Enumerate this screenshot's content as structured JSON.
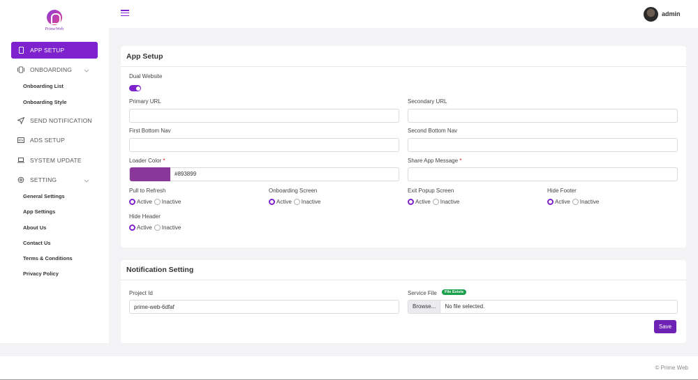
{
  "brand": {
    "logo_text": "PrimeWeb"
  },
  "topbar": {
    "user_name": "admin"
  },
  "sidebar": {
    "items": [
      {
        "label": "APP SETUP",
        "icon": "phone-icon"
      },
      {
        "label": "ONBOARDING",
        "icon": "onboarding-icon"
      },
      {
        "label": "SEND NOTIFICATION",
        "icon": "send-icon"
      },
      {
        "label": "ADS SETUP",
        "icon": "ads-icon"
      },
      {
        "label": "SYSTEM UPDATE",
        "icon": "laptop-icon"
      },
      {
        "label": "SETTING",
        "icon": "gear-icon"
      }
    ],
    "onboarding_sub": [
      "Onboarding List",
      "Onboarding Style"
    ],
    "setting_sub": [
      "General Settings",
      "App Settings",
      "About Us",
      "Contact Us",
      "Terms & Conditions",
      "Privacy Policy"
    ]
  },
  "app_setup": {
    "title": "App Setup",
    "dual_website_label": "Dual Website",
    "primary_url_label": "Primary URL",
    "primary_url_value": "",
    "secondary_url_label": "Secondary URL",
    "secondary_url_value": "",
    "first_bottom_nav_label": "First Bottom Nav",
    "first_bottom_nav_value": "",
    "second_bottom_nav_label": "Second Bottom Nav",
    "second_bottom_nav_value": "",
    "loader_color_label": "Loader Color",
    "loader_color_value": "#893899",
    "share_message_label": "Share App Message",
    "share_message_value": "",
    "required_mark": "*",
    "active_label": "Active",
    "inactive_label": "Inactive",
    "pull_to_refresh_label": "Pull to Refresh",
    "onboarding_screen_label": "Onboarding Screen",
    "exit_popup_label": "Exit Popup Screen",
    "hide_footer_label": "Hide Footer",
    "hide_header_label": "Hide Header"
  },
  "notification": {
    "title": "Notification Setting",
    "project_id_label": "Project Id",
    "project_id_value": "prime-web-6dfaf",
    "service_file_label": "Service File",
    "file_exists_badge": "File Exists",
    "browse_label": "Browse...",
    "no_file_label": "No file selected.",
    "save_label": "Save"
  },
  "footer": {
    "copyright": "© Prime Web"
  },
  "colors": {
    "accent": "#7e22ce",
    "loader": "#893899",
    "badge": "#1a9f4b"
  }
}
